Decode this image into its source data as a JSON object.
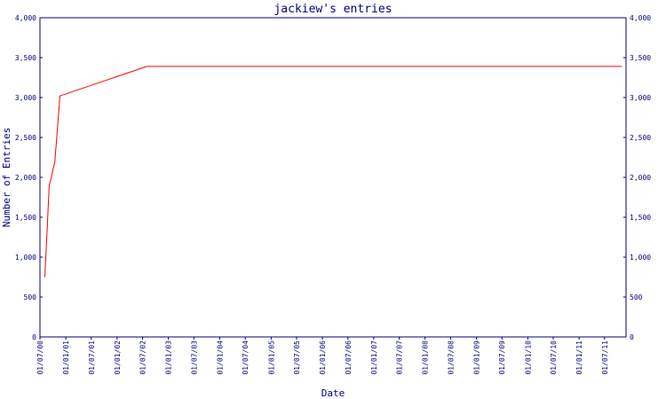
{
  "chart_data": {
    "type": "line",
    "title": "jackiew's entries",
    "xlabel": "Date",
    "ylabel": "Number of Entries",
    "xlim": [
      "2000-07-01",
      "2011-12-01"
    ],
    "ylim": [
      0,
      4000
    ],
    "y_ticks": [
      0,
      500,
      1000,
      1500,
      2000,
      2500,
      3000,
      3500,
      4000
    ],
    "y_tick_labels": [
      "0",
      "500",
      "1,000",
      "1,500",
      "2,000",
      "2,500",
      "3,000",
      "3,500",
      "4,000"
    ],
    "y_axis_sides": [
      "left",
      "right"
    ],
    "x_ticks": [
      "2000-07-01",
      "2001-01-01",
      "2001-07-01",
      "2002-01-01",
      "2002-07-01",
      "2003-01-01",
      "2003-07-01",
      "2004-01-01",
      "2004-07-01",
      "2005-01-01",
      "2005-07-01",
      "2006-01-01",
      "2006-07-01",
      "2007-01-01",
      "2007-07-01",
      "2008-01-01",
      "2008-07-01",
      "2009-01-01",
      "2009-07-01",
      "2010-01-01",
      "2010-07-01",
      "2011-01-01",
      "2011-07-01"
    ],
    "x_tick_labels": [
      "01/07/00",
      "01/01/01",
      "01/07/01",
      "01/01/02",
      "01/07/02",
      "01/01/03",
      "01/07/03",
      "01/01/04",
      "01/07/04",
      "01/01/05",
      "01/07/05",
      "01/01/06",
      "01/07/06",
      "01/01/07",
      "01/07/07",
      "01/01/08",
      "01/07/08",
      "01/01/09",
      "01/07/09",
      "01/01/10",
      "01/07/10",
      "01/01/11",
      "01/07/11"
    ],
    "grid": false,
    "series": [
      {
        "color": "#ff0000",
        "x": [
          "2000-08-05",
          "2000-08-20",
          "2000-09-05",
          "2000-09-20",
          "2000-10-15",
          "2000-11-20",
          "2002-08-01",
          "2011-11-01"
        ],
        "values": [
          750,
          1300,
          1900,
          2000,
          2200,
          3020,
          3390,
          3390
        ]
      }
    ]
  }
}
